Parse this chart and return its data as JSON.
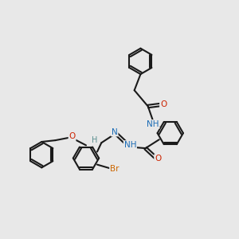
{
  "bg_color": "#e8e8e8",
  "bond_color": "#1a1a1a",
  "bond_width": 1.5,
  "dbo": 0.055,
  "atom_colors": {
    "N": "#1a6bb5",
    "O": "#cc2200",
    "Br": "#cc6600",
    "H": "#5a9090",
    "C": "#1a1a1a"
  },
  "fs": 7.5,
  "figsize": [
    3.0,
    3.0
  ],
  "dpi": 100,
  "ring_r": 0.52
}
